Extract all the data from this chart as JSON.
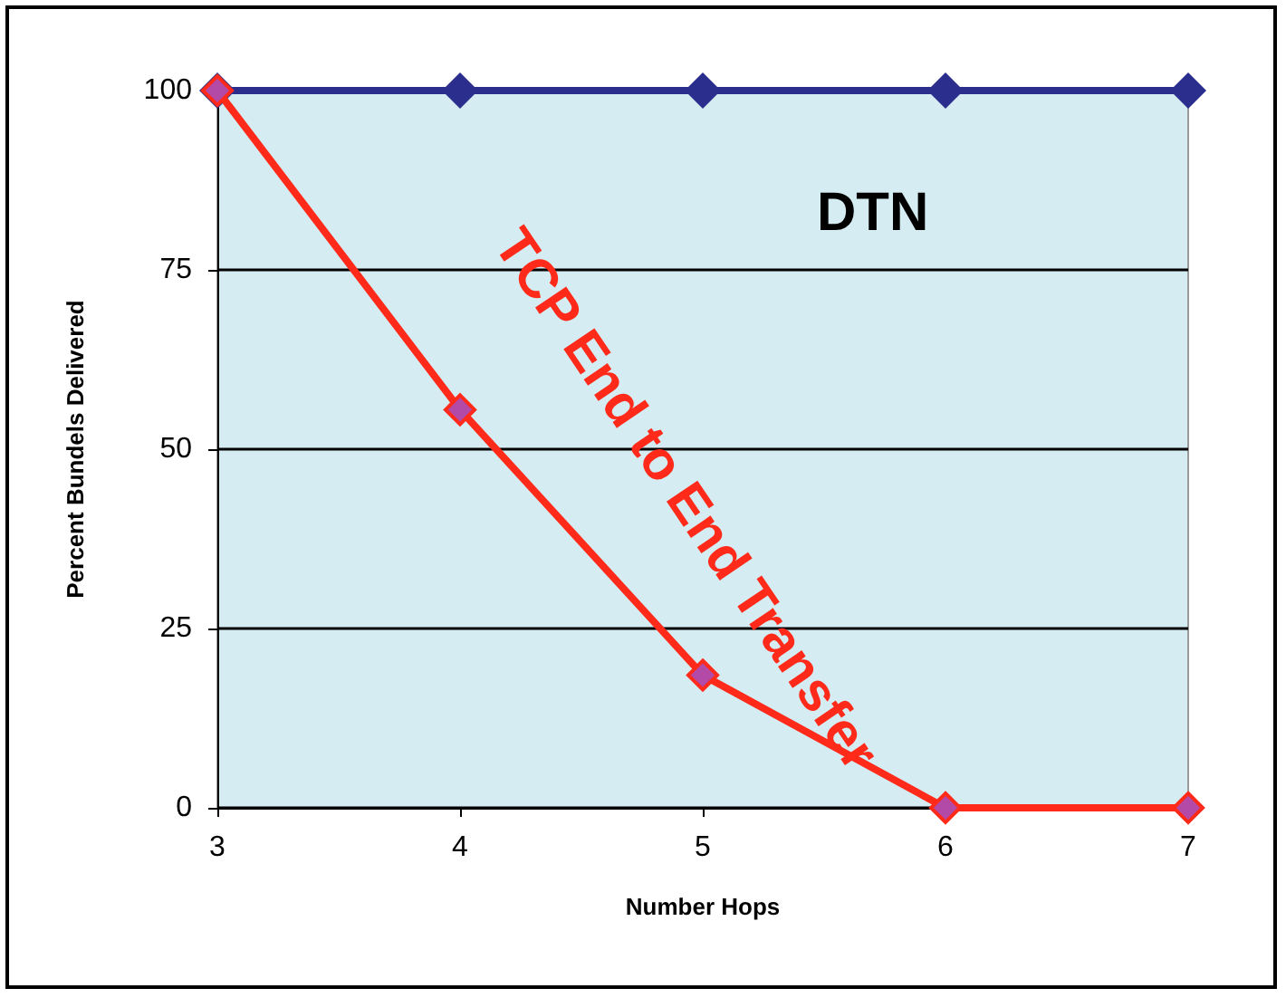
{
  "chart_data": {
    "type": "line",
    "xlabel": "Number Hops",
    "ylabel": "Percent Bundels Delivered",
    "x": [
      3,
      4,
      5,
      6,
      7
    ],
    "series": [
      {
        "name": "DTN",
        "color": "#2b2e8c",
        "values": [
          100,
          100,
          100,
          100,
          100
        ]
      },
      {
        "name": "TCP End to End Transfer",
        "color": "#ff2a1a",
        "values": [
          100,
          55.5,
          18.5,
          0,
          0
        ]
      }
    ],
    "xlim": [
      3,
      7
    ],
    "xticks": [
      3,
      4,
      5,
      6,
      7
    ],
    "ylim": [
      0,
      100
    ],
    "yticks": [
      0,
      25,
      50,
      75,
      100
    ],
    "grid": "y",
    "legend": false,
    "marker": "diamond",
    "line_style": "solid"
  }
}
